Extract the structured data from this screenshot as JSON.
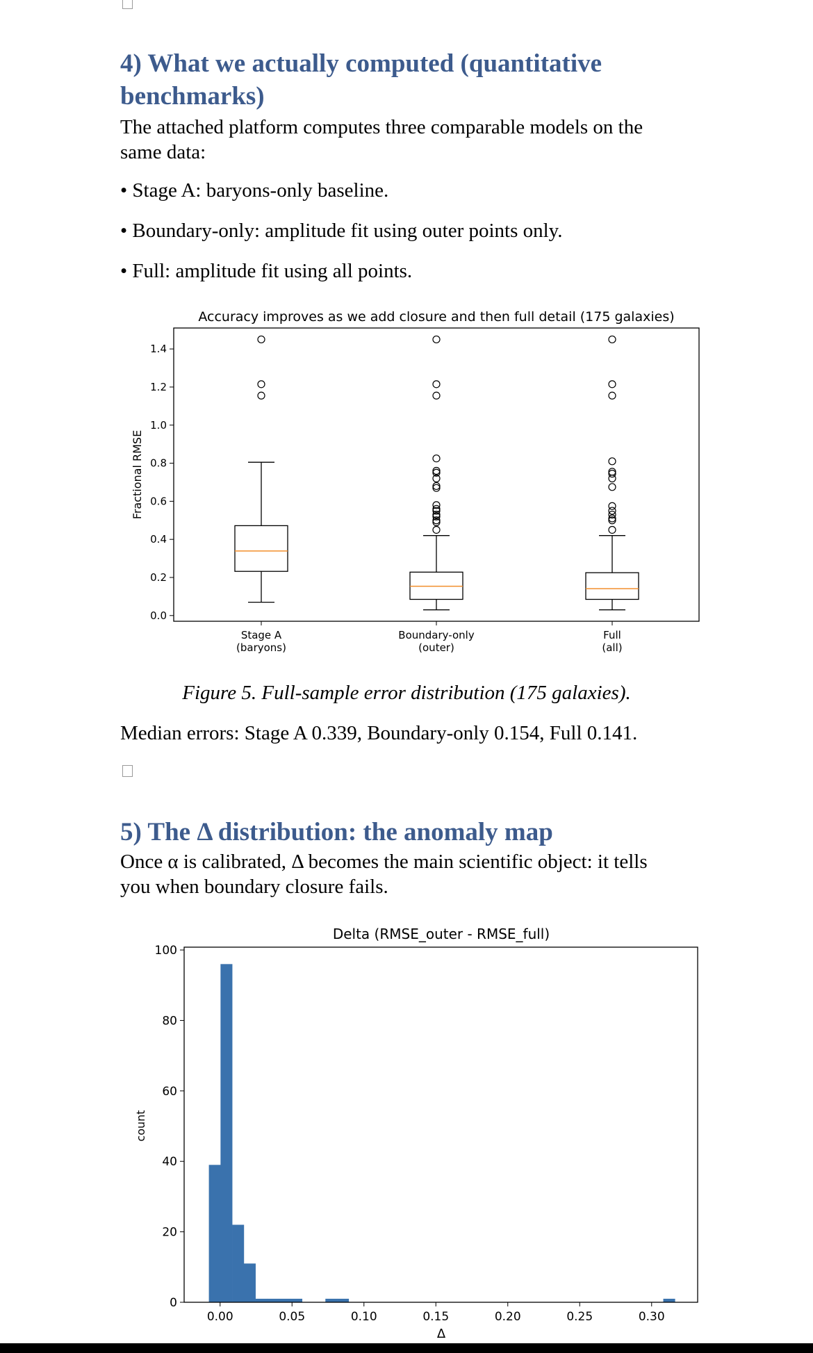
{
  "section4": {
    "heading_line1": "4) What we actually computed (quantitative",
    "heading_line2": "benchmarks)",
    "intro_line1": "The attached platform computes three comparable models on the",
    "intro_line2": "same data:",
    "bullets": [
      "Stage A: baryons-only baseline.",
      "Boundary-only: amplitude fit using outer points only.",
      "Full: amplitude fit using all points."
    ],
    "bullet_glyph": "•",
    "figure_caption": "Figure 5. Full-sample error distribution (175 galaxies).",
    "median_summary": "Median errors: Stage A 0.339, Boundary-only 0.154, Full 0.141."
  },
  "section5": {
    "heading": "5) The Δ distribution: the anomaly map",
    "intro_line1": "Once α is calibrated, Δ becomes the main scientific object: it tells",
    "intro_line2": "you when boundary closure fails."
  },
  "colors": {
    "heading": "#3d5b8d",
    "median_line": "#f28e2b",
    "hist_bar": "#3a72ad"
  },
  "chart_data": [
    {
      "type": "box",
      "title": "Accuracy improves as we add closure and then full detail (175 galaxies)",
      "ylabel": "Fractional RMSE",
      "xlabel": "",
      "ylim": [
        -0.03,
        1.51
      ],
      "yticks": [
        "0.0",
        "0.2",
        "0.4",
        "0.6",
        "0.8",
        "1.0",
        "1.2",
        "1.4"
      ],
      "categories": [
        {
          "line1": "Stage A",
          "line2": "(baryons)"
        },
        {
          "line1": "Boundary-only",
          "line2": "(outer)"
        },
        {
          "line1": "Full",
          "line2": "(all)"
        }
      ],
      "boxes": [
        {
          "whisker_low": 0.07,
          "q1": 0.232,
          "median": 0.339,
          "q3": 0.472,
          "whisker_high": 0.805,
          "outliers": [
            1.155,
            1.215,
            1.45
          ]
        },
        {
          "whisker_low": 0.03,
          "q1": 0.085,
          "median": 0.154,
          "q3": 0.228,
          "whisker_high": 0.42,
          "outliers": [
            0.45,
            0.49,
            0.5,
            0.52,
            0.53,
            0.55,
            0.56,
            0.58,
            0.67,
            0.68,
            0.72,
            0.75,
            0.76,
            0.825,
            1.155,
            1.215,
            1.45
          ]
        },
        {
          "whisker_low": 0.03,
          "q1": 0.085,
          "median": 0.141,
          "q3": 0.225,
          "whisker_high": 0.42,
          "outliers": [
            0.45,
            0.5,
            0.51,
            0.53,
            0.55,
            0.575,
            0.675,
            0.72,
            0.745,
            0.755,
            0.81,
            1.155,
            1.215,
            1.45
          ]
        }
      ],
      "grid": false
    },
    {
      "type": "histogram",
      "title": "Delta (RMSE_outer - RMSE_full)",
      "xlabel": "Δ",
      "ylabel": "count",
      "xlim": [
        -0.025,
        0.332
      ],
      "ylim": [
        0,
        100.8
      ],
      "xticks": [
        0.0,
        0.05,
        0.1,
        0.15,
        0.2,
        0.25,
        0.3
      ],
      "xtick_labels": [
        "0.00",
        "0.05",
        "0.10",
        "0.15",
        "0.20",
        "0.25",
        "0.30"
      ],
      "yticks": [
        0,
        20,
        40,
        60,
        80,
        100
      ],
      "ytick_labels": [
        "0",
        "20",
        "40",
        "60",
        "80",
        "100"
      ],
      "bin_start": -0.0078,
      "bin_width": 0.0081,
      "counts": [
        39,
        96,
        22,
        11,
        1,
        1,
        1,
        1,
        0,
        0,
        1,
        1,
        0,
        0,
        0,
        0,
        0,
        0,
        0,
        0,
        0,
        0,
        0,
        0,
        0,
        0,
        0,
        0,
        0,
        0,
        0,
        0,
        0,
        0,
        0,
        0,
        0,
        0,
        0,
        1
      ],
      "grid": false
    }
  ]
}
